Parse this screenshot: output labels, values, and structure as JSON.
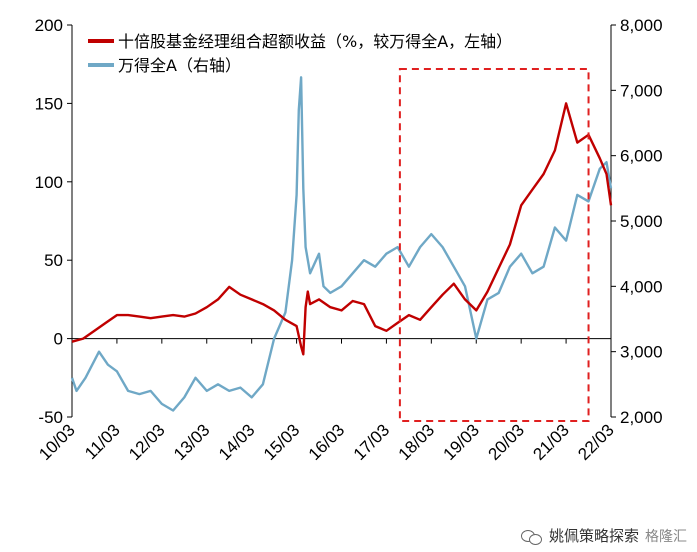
{
  "chart_data": {
    "type": "line",
    "x_categories": [
      "10/03",
      "11/03",
      "12/03",
      "13/03",
      "14/03",
      "15/03",
      "16/03",
      "17/03",
      "18/03",
      "19/03",
      "20/03",
      "21/03",
      "22/03"
    ],
    "left_axis": {
      "min": -50,
      "max": 200,
      "ticks": [
        "-50",
        "0",
        "50",
        "100",
        "150",
        "200"
      ]
    },
    "right_axis": {
      "min": 2000,
      "max": 8000,
      "ticks": [
        "2,000",
        "3,000",
        "4,000",
        "5,000",
        "6,000",
        "7,000",
        "8,000"
      ]
    },
    "series": [
      {
        "name": "十倍股基金经理组合超额收益（%，较万得全A，左轴）",
        "axis": "left",
        "color": "#C00000",
        "x": [
          0,
          0.25,
          0.5,
          0.75,
          1,
          1.25,
          1.5,
          1.75,
          2,
          2.25,
          2.5,
          2.75,
          3,
          3.25,
          3.5,
          3.75,
          4,
          4.25,
          4.5,
          4.75,
          5,
          5.1,
          5.15,
          5.2,
          5.25,
          5.3,
          5.5,
          5.75,
          6,
          6.25,
          6.5,
          6.75,
          7,
          7.25,
          7.5,
          7.75,
          8,
          8.25,
          8.5,
          8.75,
          9,
          9.25,
          9.5,
          9.75,
          10,
          10.25,
          10.5,
          10.75,
          11,
          11.25,
          11.5,
          11.75,
          11.9,
          12
        ],
        "values": [
          -2,
          0,
          5,
          10,
          15,
          15,
          14,
          13,
          14,
          15,
          14,
          16,
          20,
          25,
          33,
          28,
          25,
          22,
          18,
          12,
          8,
          -5,
          -10,
          20,
          30,
          22,
          25,
          20,
          18,
          24,
          22,
          8,
          5,
          10,
          15,
          12,
          20,
          28,
          35,
          25,
          18,
          30,
          45,
          60,
          85,
          95,
          105,
          120,
          150,
          125,
          130,
          115,
          105,
          85
        ]
      },
      {
        "name": "万得全A（右轴）",
        "axis": "right",
        "color": "#6FA8C6",
        "x": [
          0,
          0.1,
          0.3,
          0.6,
          0.8,
          1,
          1.25,
          1.5,
          1.75,
          2,
          2.25,
          2.5,
          2.75,
          3,
          3.25,
          3.5,
          3.75,
          4,
          4.25,
          4.5,
          4.75,
          4.9,
          5,
          5.05,
          5.1,
          5.15,
          5.2,
          5.3,
          5.5,
          5.6,
          5.75,
          6,
          6.25,
          6.5,
          6.75,
          7,
          7.25,
          7.5,
          7.75,
          8,
          8.25,
          8.5,
          8.75,
          9,
          9.25,
          9.5,
          9.75,
          10,
          10.25,
          10.5,
          10.75,
          11,
          11.25,
          11.5,
          11.75,
          11.9,
          12
        ],
        "values": [
          2600,
          2400,
          2600,
          3000,
          2800,
          2700,
          2400,
          2350,
          2400,
          2200,
          2100,
          2300,
          2600,
          2400,
          2500,
          2400,
          2450,
          2300,
          2500,
          3200,
          3600,
          4400,
          5400,
          6700,
          7200,
          5500,
          4600,
          4200,
          4500,
          4000,
          3900,
          4000,
          4200,
          4400,
          4300,
          4500,
          4600,
          4300,
          4600,
          4800,
          4600,
          4300,
          4000,
          3200,
          3800,
          3900,
          4300,
          4500,
          4200,
          4300,
          4900,
          4700,
          5400,
          5300,
          5800,
          5900,
          5500
        ]
      }
    ],
    "annotation": "red dashed rectangle from 17/03 to 21/03",
    "highlight": {
      "x_from": 7.3,
      "x_to": 11.5
    }
  },
  "legend": {
    "item1": "十倍股基金经理组合超额收益（%，较万得全A，左轴）",
    "item2": "万得全A（右轴）"
  },
  "footer": {
    "source": "姚佩策略探索",
    "watermark": "格隆汇"
  }
}
